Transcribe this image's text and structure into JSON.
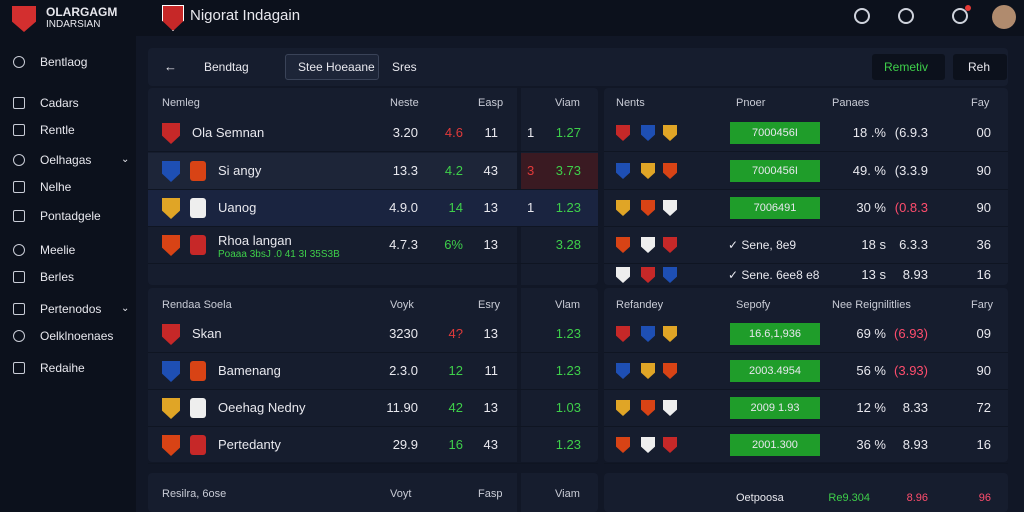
{
  "brand": {
    "line1": "OLARGAGM",
    "line2": "INDARSIAN"
  },
  "header": {
    "title": "Nigorat Indagain"
  },
  "sidebar": [
    {
      "label": "Bentlaog"
    },
    {
      "label": "Cadars"
    },
    {
      "label": "Rentle"
    },
    {
      "label": "Oelhagas",
      "expandable": true
    },
    {
      "label": "Nelhe"
    },
    {
      "label": "Pontadgele"
    },
    {
      "label": "Meelie"
    },
    {
      "label": "Berles"
    },
    {
      "label": "Pertenodos",
      "expandable": true
    },
    {
      "label": "Oelklnoenaes"
    },
    {
      "label": "Redaihe"
    }
  ],
  "toolbar": {
    "dropdown1": "Bendtag",
    "tab": "Stee Hoeaane",
    "dropdown2": "Sres",
    "button1": "Remetiv",
    "button2": "Reh"
  },
  "sections": [
    {
      "left": {
        "headers": [
          "Nemleg",
          "Neste",
          "Easp",
          "Viam"
        ],
        "rows": [
          {
            "name": "Ola Semnan",
            "cells": [
              "3.20",
              "4.6",
              "11",
              "1",
              "1.27"
            ],
            "change_color": "#e03a3a"
          },
          {
            "name": "Si angy",
            "cells": [
              "13.3",
              "4.2",
              "43",
              "3",
              "3.73"
            ],
            "change_color": "#3ecf4a"
          },
          {
            "name": "Uanog",
            "cells": [
              "4.9.0",
              "14",
              "13",
              "1",
              "1.23"
            ],
            "change_color": "#3ecf4a"
          },
          {
            "name": "Rhoa langan",
            "sub": "Poaaa 3bsJ .0 41 3I 35S3B",
            "cells": [
              "4.7.3",
              "6%",
              "13",
              "",
              "3.28"
            ],
            "change_color": "#3ecf4a"
          }
        ]
      },
      "right": {
        "headers": [
          "Nents",
          "Pnoer",
          "Panaes",
          "Fay"
        ],
        "rows": [
          {
            "kind": "badge",
            "label": "7000456I",
            "cells": [
              "18 .%",
              "(6.9.3",
              "00"
            ],
            "value_color": "#e8e8ee"
          },
          {
            "kind": "badge",
            "label": "7000456I",
            "cells": [
              "49. %",
              "(3.3.9",
              "90"
            ],
            "value_color": "#e8e8ee"
          },
          {
            "kind": "badge",
            "label": "7006491",
            "cells": [
              "30 %",
              "(0.8.3",
              "90"
            ],
            "value_color": "#ff4d6d"
          },
          {
            "kind": "check",
            "label": "Sene, 8e9",
            "cells": [
              "18 s",
              "6.3.3",
              "36"
            ],
            "value_color": "#e8e8ee"
          },
          {
            "kind": "check",
            "label": "Sene. 6ee8 e8",
            "cells": [
              "13 s",
              "8.93",
              "16"
            ],
            "value_color": "#e8e8ee"
          }
        ]
      }
    },
    {
      "left": {
        "headers": [
          "Rendaa Soela",
          "Voyk",
          "Esry",
          "Vlam"
        ],
        "rows": [
          {
            "name": "Skan",
            "cells": [
              "3230",
              "4?",
              "13",
              "",
              "1.23"
            ],
            "change_color": "#e03a3a"
          },
          {
            "name": "Bamenang",
            "cells": [
              "2.3.0",
              "12",
              "11",
              "",
              "1.23"
            ],
            "change_color": "#3ecf4a"
          },
          {
            "name": "Oeehag Nedny",
            "cells": [
              "11.90",
              "42",
              "13",
              "",
              "1.03"
            ],
            "change_color": "#3ecf4a"
          },
          {
            "name": "Pertedanty",
            "cells": [
              "29.9",
              "16",
              "43",
              "",
              "1.23"
            ],
            "change_color": "#3ecf4a"
          }
        ]
      },
      "right": {
        "headers": [
          "Refandey",
          "Sepofy",
          "Nee Reignilitlies",
          "Fary"
        ],
        "rows": [
          {
            "kind": "badge",
            "label": "16.6,1,936",
            "cells": [
              "69 %",
              "(6.93)",
              "09"
            ],
            "value_color": "#ff4d6d"
          },
          {
            "kind": "badge",
            "label": "2003.4954",
            "cells": [
              "56 %",
              "(3.93)",
              "90"
            ],
            "value_color": "#ff4d6d"
          },
          {
            "kind": "badge",
            "label": "2009 1.93",
            "cells": [
              "12 %",
              "8.33",
              "72"
            ],
            "value_color": "#e8e8ee"
          },
          {
            "kind": "badge",
            "label": "2001.300",
            "cells": [
              "36 %",
              "8.93",
              "16"
            ],
            "value_color": "#e8e8ee"
          }
        ]
      }
    },
    {
      "left": {
        "headers": [
          "Resilra, 6ose",
          "Voyt",
          "Fasp",
          "Viam"
        ],
        "rows": []
      },
      "right": {
        "footer": [
          "Oetpoosa",
          "Re9.304",
          "8.96",
          "96"
        ]
      }
    }
  ]
}
